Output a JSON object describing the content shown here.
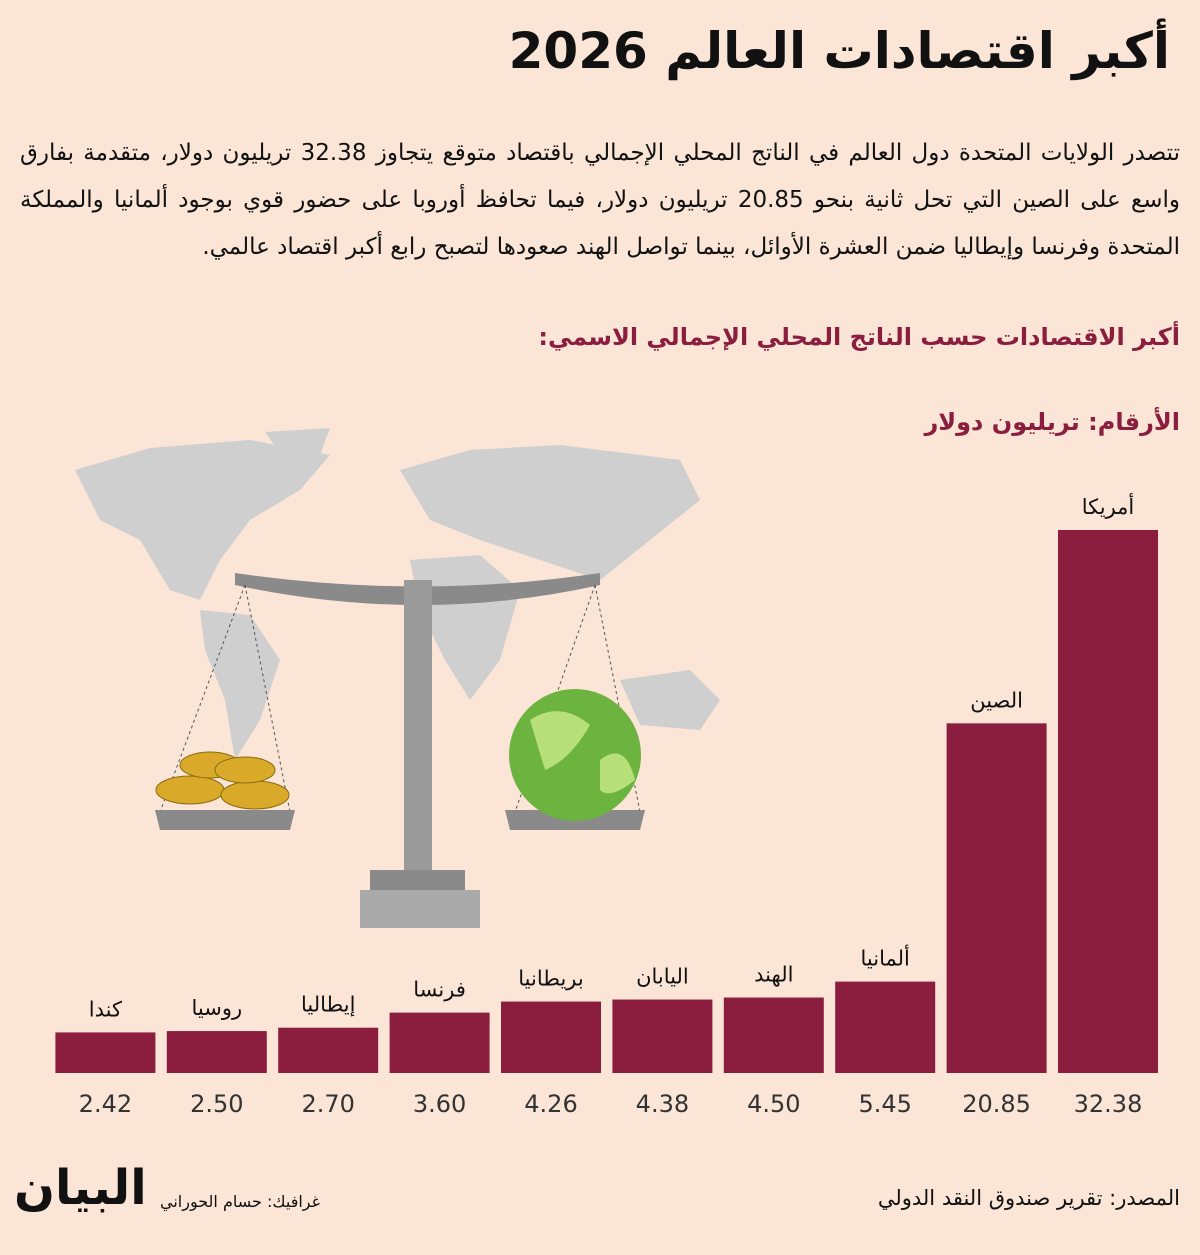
{
  "title": "أكبر اقتصادات العالم 2026",
  "intro": "تتصدر الولايات المتحدة دول العالم في الناتج المحلي الإجمالي باقتصاد متوقع يتجاوز 32.38 تريليون دولار، متقدمة بفارق واسع على الصين التي تحل ثانية بنحو 20.85 تريليون دولار، فيما تحافظ أوروبا على حضور قوي بوجود ألمانيا والمملكة المتحدة وفرنسا وإيطاليا ضمن العشرة الأوائل، بينما تواصل الهند صعودها لتصبح رابع أكبر اقتصاد عالمي.",
  "source": "المصدر: تقرير صندوق النقد الدولي",
  "credit": "غرافيك: حسام الحوراني",
  "logo": "البيان",
  "chart_data": {
    "type": "bar",
    "title": "أكبر الاقتصادات حسب الناتج المحلي الإجمالي الاسمي:",
    "subtitle": "الأرقام: تريليون دولار",
    "categories": [
      "أمريكا",
      "الصين",
      "ألمانيا",
      "الهند",
      "اليابان",
      "بريطانيا",
      "فرنسا",
      "إيطاليا",
      "روسيا",
      "كندا"
    ],
    "values": [
      32.38,
      20.85,
      5.45,
      4.5,
      4.38,
      4.26,
      3.6,
      2.7,
      2.5,
      2.42
    ],
    "value_labels": [
      "32.38",
      "20.85",
      "5.45",
      "4.50",
      "4.38",
      "4.26",
      "3.60",
      "2.70",
      "2.50",
      "2.42"
    ],
    "color": "#8b1e3f"
  }
}
